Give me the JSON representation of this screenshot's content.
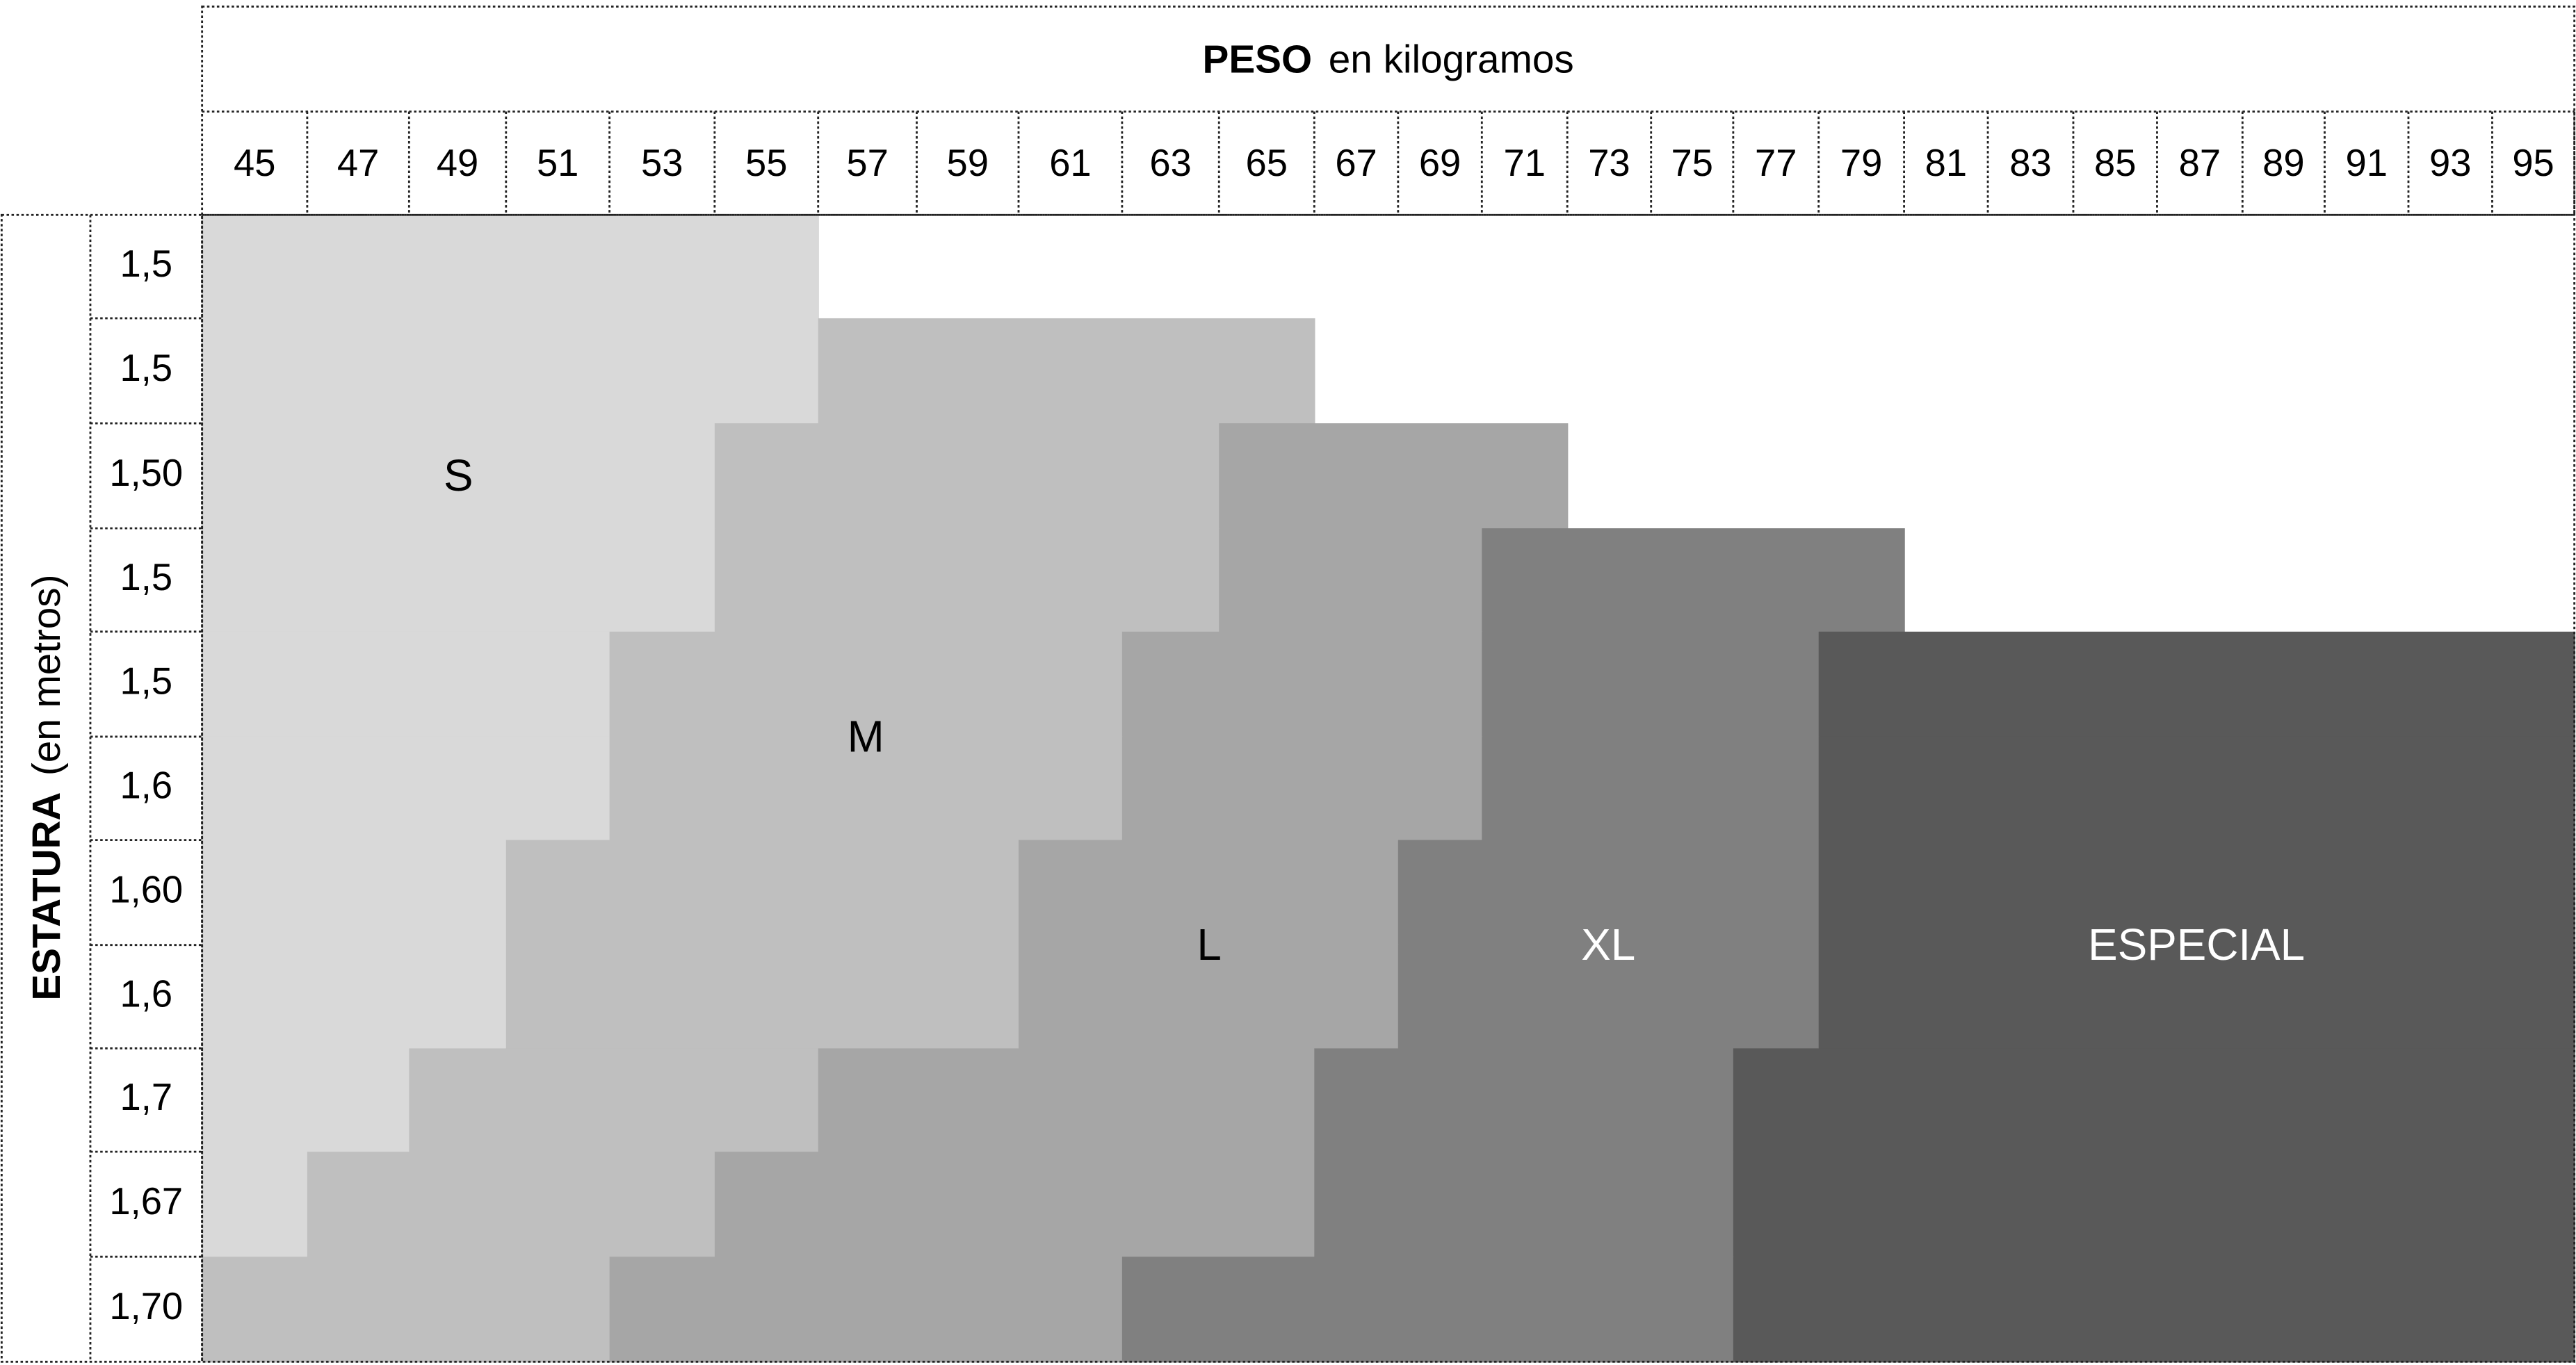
{
  "header": {
    "title_bold": "PESO",
    "title_rest": "en kilogramos"
  },
  "side_label": {
    "bold": "ESTATURA",
    "rest": "(en metros)"
  },
  "weights": [
    45,
    47,
    49,
    51,
    53,
    55,
    57,
    59,
    61,
    63,
    65,
    67,
    69,
    71,
    73,
    75,
    77,
    79,
    81,
    83,
    85,
    87,
    89,
    91,
    93,
    95
  ],
  "heights": [
    "1,5",
    "1,5",
    "1,50",
    "1,5",
    "1,5",
    "1,6",
    "1,60",
    "1,6",
    "1,7",
    "1,67",
    "1,70"
  ],
  "zones": [
    {
      "label": "S",
      "color": "#d9d9d9",
      "text_color": "#000000"
    },
    {
      "label": "M",
      "color": "#bfbfbf",
      "text_color": "#000000"
    },
    {
      "label": "L",
      "color": "#a6a6a6",
      "text_color": "#000000"
    },
    {
      "label": "XL",
      "color": "#808080",
      "text_color": "#ffffff"
    },
    {
      "label": "ESPECIAL",
      "color": "#595959",
      "text_color": "#ffffff"
    }
  ]
}
